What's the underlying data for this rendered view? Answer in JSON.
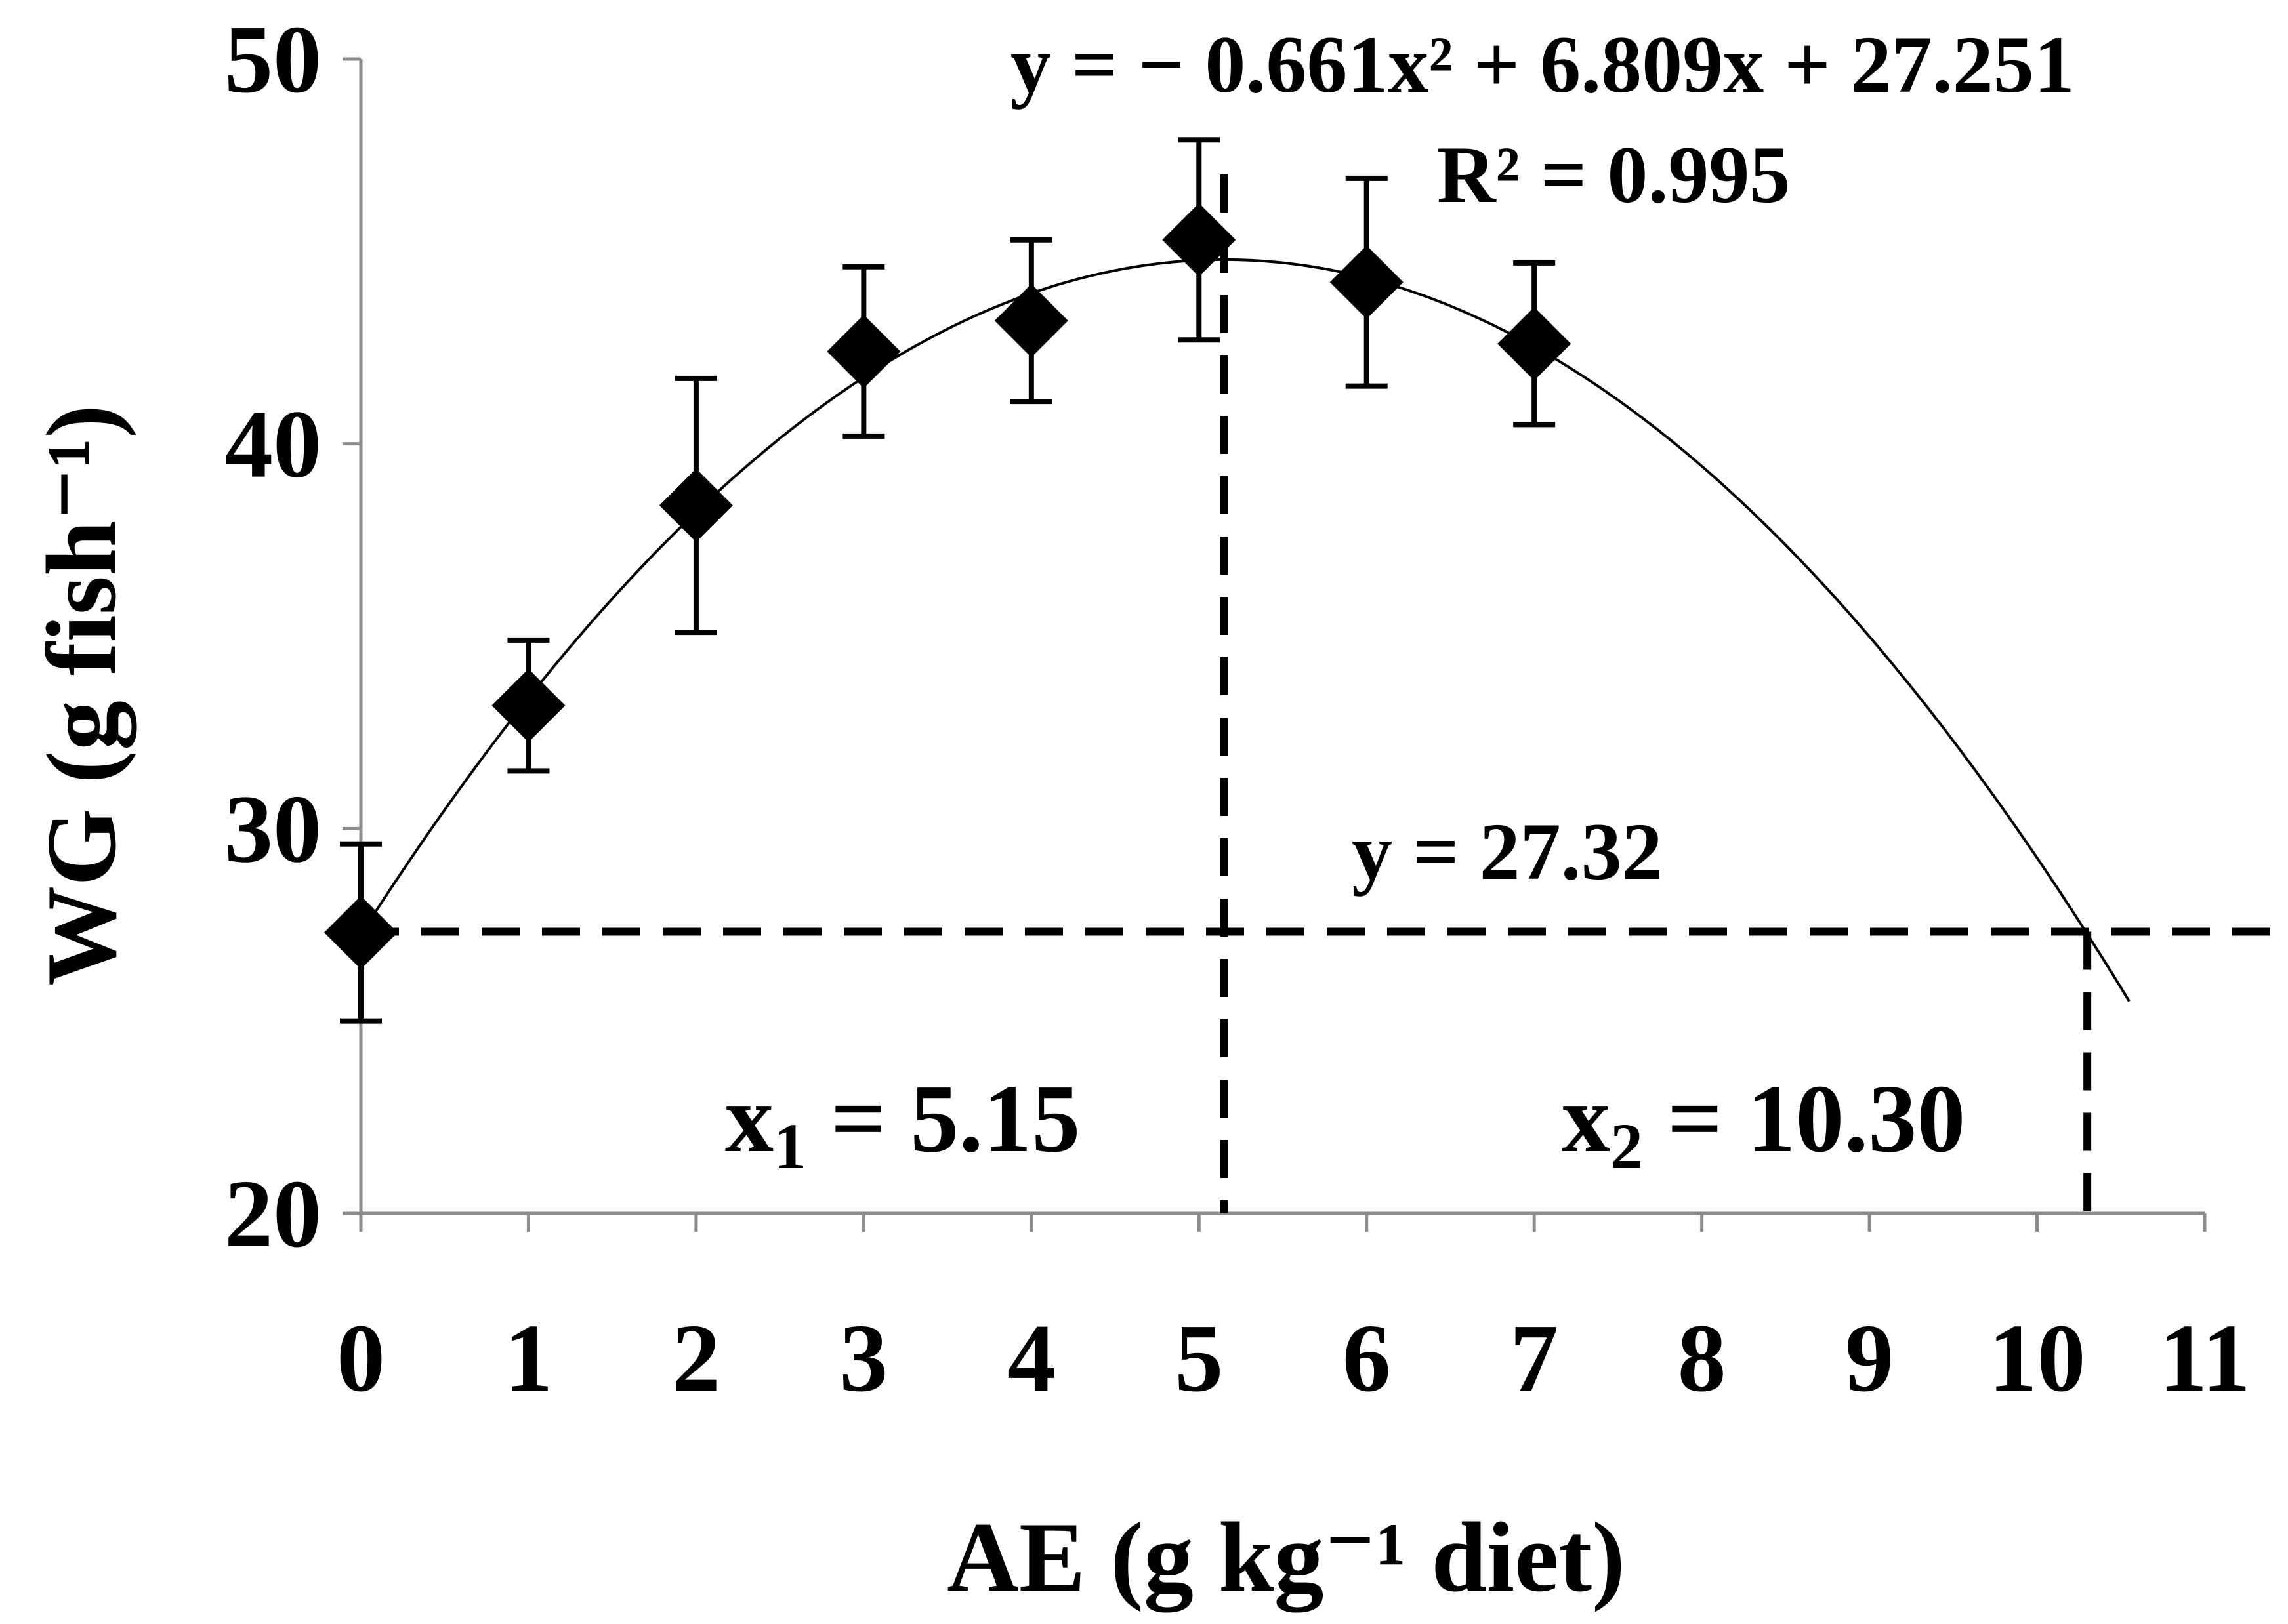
{
  "chart_data": {
    "type": "scatter",
    "xlabel": "AE (g kg⁻¹ diet)",
    "ylabel": "WG (g fish⁻¹)",
    "xlim": [
      0,
      11
    ],
    "ylim": [
      20,
      50
    ],
    "x_ticks": [
      "0",
      "1",
      "2",
      "3",
      "4",
      "5",
      "6",
      "7",
      "8",
      "9",
      "10",
      "11"
    ],
    "y_ticks": [
      "20",
      "30",
      "40",
      "50"
    ],
    "points": [
      {
        "x": 0,
        "y": 27.3,
        "err": 2.3
      },
      {
        "x": 1,
        "y": 33.2,
        "err": 1.7
      },
      {
        "x": 2,
        "y": 38.4,
        "err": 3.3
      },
      {
        "x": 3,
        "y": 42.4,
        "err": 2.2
      },
      {
        "x": 4,
        "y": 43.2,
        "err": 2.1
      },
      {
        "x": 5,
        "y": 45.3,
        "err": 2.6
      },
      {
        "x": 6,
        "y": 44.2,
        "err": 2.7
      },
      {
        "x": 7,
        "y": 42.6,
        "err": 2.1
      }
    ],
    "fit": {
      "a": -0.661,
      "b": 6.809,
      "c": 27.251,
      "x_range": [
        0,
        10.55
      ]
    },
    "annotations": {
      "equation": "y = − 0.661x² + 6.809x + 27.251",
      "r2": "R² = 0.995",
      "y_line_label": "y = 27.32",
      "x1_label_main": "x",
      "x1_sub": "1",
      "x1_value": " = 5.15",
      "x2_label_main": "x",
      "x2_sub": "2",
      "x2_value": " = 10.30"
    },
    "reference_lines": {
      "y": 27.32,
      "x1": 5.15,
      "x2": 10.3
    },
    "grid": false,
    "legend": "none"
  }
}
